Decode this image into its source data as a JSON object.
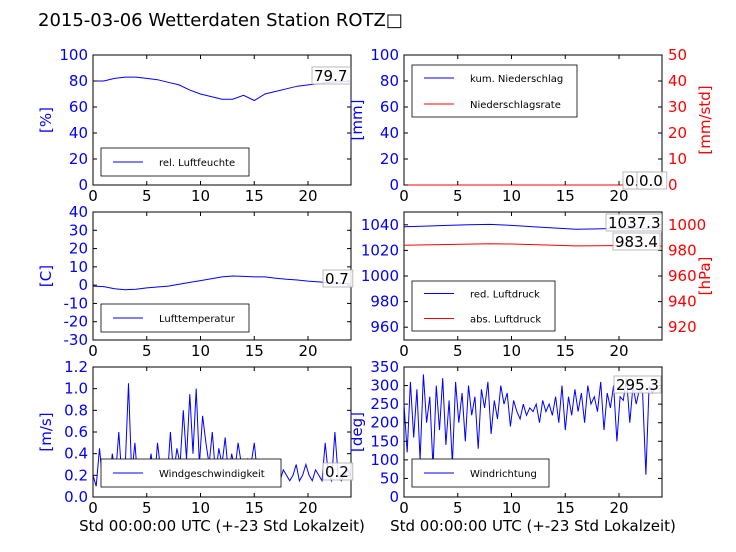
{
  "title": "2015-03-06 Wetterdaten Station ROTZ□",
  "colors": {
    "blue": "#0000ff",
    "red": "#ff0000",
    "black": "#000000"
  },
  "chart_data": [
    {
      "id": "humidity",
      "type": "line",
      "xlim": [
        0,
        24
      ],
      "ylim": [
        0,
        100
      ],
      "xticks": [
        0,
        5,
        10,
        15,
        20
      ],
      "yticks": [
        0,
        20,
        40,
        60,
        80,
        100
      ],
      "ylabel": "[%]",
      "ylabel_color": "#0000ff",
      "legend": [
        "rel. Luftfeuchte"
      ],
      "legend_position": "lower-left",
      "annotation": "79.7",
      "series": [
        {
          "name": "rel. Luftfeuchte",
          "color": "#0000ff",
          "x": [
            0,
            1,
            2,
            3,
            4,
            5,
            6,
            7,
            8,
            9,
            10,
            11,
            12,
            13,
            14,
            15,
            16,
            17,
            18,
            19,
            20,
            21,
            22,
            23,
            24
          ],
          "y": [
            80,
            80,
            82,
            83,
            83,
            82,
            81,
            79,
            77,
            73,
            70,
            68,
            66,
            66,
            69,
            65,
            70,
            72,
            74,
            76,
            77,
            78,
            79,
            79.5,
            79.7
          ]
        }
      ]
    },
    {
      "id": "precip",
      "type": "line",
      "xlim": [
        0,
        24
      ],
      "ylim": [
        0,
        100
      ],
      "ylim_right": [
        0,
        50
      ],
      "xticks": [
        0,
        5,
        10,
        15,
        20
      ],
      "yticks": [
        0,
        20,
        40,
        60,
        80,
        100
      ],
      "yticks_right": [
        0,
        10,
        20,
        30,
        40,
        50
      ],
      "ylabel": "[mm]",
      "ylabel_color": "#0000ff",
      "ylabel_right": "[mm/std]",
      "ylabel_right_color": "#ff0000",
      "legend": [
        "kum. Niederschlag",
        "Niederschlagsrate"
      ],
      "legend_position": "upper-left",
      "annotations": [
        "0.0",
        "0.0"
      ],
      "series": [
        {
          "name": "kum. Niederschlag",
          "color": "#0000ff",
          "x": [
            0,
            24
          ],
          "y": [
            0,
            0
          ]
        },
        {
          "name": "Niederschlagsrate",
          "color": "#ff0000",
          "x": [
            0,
            24
          ],
          "y": [
            0,
            0
          ]
        }
      ]
    },
    {
      "id": "temperature",
      "type": "line",
      "xlim": [
        0,
        24
      ],
      "ylim": [
        -30,
        40
      ],
      "xticks": [
        0,
        5,
        10,
        15,
        20
      ],
      "yticks": [
        -30,
        -20,
        -10,
        0,
        10,
        20,
        30,
        40
      ],
      "ylabel": "[C]",
      "ylabel_color": "#0000ff",
      "legend": [
        "Lufttemperatur"
      ],
      "legend_position": "lower-left",
      "annotation": "0.7",
      "series": [
        {
          "name": "Lufttemperatur",
          "color": "#0000ff",
          "x": [
            0,
            1,
            2,
            3,
            4,
            5,
            6,
            7,
            8,
            9,
            10,
            11,
            12,
            13,
            14,
            15,
            16,
            17,
            18,
            19,
            20,
            21,
            22,
            23,
            24
          ],
          "y": [
            -0.5,
            -0.8,
            -2,
            -2.5,
            -2.3,
            -1.5,
            -1,
            -0.5,
            0.5,
            1.5,
            2.5,
            3.5,
            4.5,
            5,
            4.8,
            4.5,
            4.5,
            3.8,
            3.2,
            2.8,
            2.2,
            1.8,
            1.3,
            1,
            0.7
          ]
        }
      ]
    },
    {
      "id": "pressure",
      "type": "line",
      "xlim": [
        0,
        24
      ],
      "ylim": [
        950,
        1050
      ],
      "ylim_right": [
        910,
        1010
      ],
      "xticks": [
        0,
        5,
        10,
        15,
        20
      ],
      "yticks": [
        960,
        980,
        1000,
        1020,
        1040
      ],
      "yticks_right": [
        920,
        940,
        960,
        980,
        1000
      ],
      "ylabel_right": "[hPa]",
      "ylabel_right_color": "#ff0000",
      "legend": [
        "red. Luftdruck",
        "abs. Luftdruck"
      ],
      "legend_position": "lower-left",
      "annotations": [
        "1037.3",
        "983.4"
      ],
      "series": [
        {
          "name": "red. Luftdruck",
          "color": "#0000ff",
          "axis": "left",
          "x": [
            0,
            2,
            4,
            6,
            8,
            10,
            12,
            14,
            16,
            18,
            20,
            22,
            24
          ],
          "y": [
            1038.5,
            1039,
            1039.5,
            1040,
            1040.3,
            1039.5,
            1038.5,
            1037.5,
            1036.5,
            1036.8,
            1037.2,
            1037.3,
            1037.3
          ]
        },
        {
          "name": "abs. Luftdruck",
          "color": "#ff0000",
          "axis": "right",
          "x": [
            0,
            2,
            4,
            6,
            8,
            10,
            12,
            14,
            16,
            18,
            20,
            22,
            24
          ],
          "y": [
            984,
            984.3,
            984.6,
            984.9,
            985.2,
            985,
            984.5,
            984,
            983.5,
            983.6,
            983.8,
            983.5,
            983.4
          ]
        }
      ]
    },
    {
      "id": "windspeed",
      "type": "line",
      "xlim": [
        0,
        24
      ],
      "ylim": [
        0,
        1.2
      ],
      "xticks": [
        0,
        5,
        10,
        15,
        20
      ],
      "yticks": [
        0.0,
        0.2,
        0.4,
        0.6,
        0.8,
        1.0,
        1.2
      ],
      "ylabel": "[m/s]",
      "ylabel_color": "#0000ff",
      "xlabel": "Std 00:00:00 UTC (+-23 Std Lokalzeit)",
      "legend": [
        "Windgeschwindigkeit"
      ],
      "legend_position": "lower-left",
      "annotation": "0.2",
      "series": [
        {
          "name": "Windgeschwindigkeit",
          "color": "#0000ff",
          "x": [
            0,
            0.3,
            0.6,
            0.9,
            1.2,
            1.5,
            1.8,
            2.1,
            2.4,
            2.7,
            3.0,
            3.3,
            3.6,
            3.9,
            4.2,
            4.5,
            4.8,
            5.1,
            5.4,
            5.7,
            6.0,
            6.3,
            6.6,
            6.9,
            7.2,
            7.5,
            7.8,
            8.1,
            8.4,
            8.7,
            9.0,
            9.3,
            9.6,
            9.9,
            10.2,
            10.5,
            10.8,
            11.1,
            11.4,
            11.7,
            12.0,
            12.3,
            12.6,
            12.9,
            13.2,
            13.5,
            13.8,
            14.1,
            14.4,
            14.7,
            15.0,
            15.3,
            15.6,
            15.9,
            16.2,
            16.5,
            16.8,
            17.1,
            17.4,
            17.7,
            18.0,
            18.3,
            18.6,
            18.9,
            19.2,
            19.5,
            19.8,
            20.1,
            20.4,
            20.7,
            21.0,
            21.3,
            21.6,
            21.9,
            22.2,
            22.5,
            22.8,
            23.1,
            23.4,
            23.7,
            24.0
          ],
          "y": [
            0.2,
            0.1,
            0.45,
            0.15,
            0.3,
            0.1,
            0.4,
            0.2,
            0.6,
            0.15,
            0.3,
            1.05,
            0.2,
            0.5,
            0.1,
            0.35,
            0.15,
            0.2,
            0.4,
            0.1,
            0.5,
            0.25,
            0.3,
            0.15,
            0.6,
            0.2,
            0.45,
            0.3,
            0.8,
            0.35,
            0.95,
            0.4,
            1.0,
            0.3,
            0.75,
            0.5,
            0.3,
            0.6,
            0.2,
            0.45,
            0.3,
            0.55,
            0.2,
            0.4,
            0.25,
            0.5,
            0.3,
            0.2,
            0.35,
            0.3,
            0.5,
            0.2,
            0.3,
            0.15,
            0.25,
            0.2,
            0.3,
            0.2,
            0.15,
            0.25,
            0.2,
            0.15,
            0.2,
            0.3,
            0.15,
            0.2,
            0.3,
            0.2,
            0.15,
            0.25,
            0.2,
            0.15,
            0.5,
            0.2,
            0.15,
            0.6,
            0.2,
            0.15,
            0.2,
            0.25,
            0.2
          ]
        }
      ]
    },
    {
      "id": "winddir",
      "type": "line",
      "xlim": [
        0,
        24
      ],
      "ylim": [
        0,
        350
      ],
      "xticks": [
        0,
        5,
        10,
        15,
        20
      ],
      "yticks": [
        0,
        50,
        100,
        150,
        200,
        250,
        300,
        350
      ],
      "ylabel": "[deg]",
      "ylabel_color": "#0000ff",
      "xlabel": "Std 00:00:00 UTC (+-23 Std Lokalzeit)",
      "legend": [
        "Windrichtung"
      ],
      "legend_position": "lower-left",
      "annotation": "295.3",
      "series": [
        {
          "name": "Windrichtung",
          "color": "#0000ff",
          "x": [
            0,
            0.3,
            0.6,
            0.9,
            1.2,
            1.5,
            1.8,
            2.1,
            2.4,
            2.7,
            3.0,
            3.3,
            3.6,
            3.9,
            4.2,
            4.5,
            4.8,
            5.1,
            5.4,
            5.7,
            6.0,
            6.3,
            6.6,
            6.9,
            7.2,
            7.5,
            7.8,
            8.1,
            8.4,
            8.7,
            9.0,
            9.3,
            9.6,
            9.9,
            10.2,
            10.5,
            10.8,
            11.1,
            11.4,
            11.7,
            12.0,
            12.3,
            12.6,
            12.9,
            13.2,
            13.5,
            13.8,
            14.1,
            14.4,
            14.7,
            15.0,
            15.3,
            15.6,
            15.9,
            16.2,
            16.5,
            16.8,
            17.1,
            17.4,
            17.7,
            18.0,
            18.3,
            18.6,
            18.9,
            19.2,
            19.5,
            19.8,
            20.1,
            20.4,
            20.7,
            21.0,
            21.3,
            21.6,
            21.9,
            22.2,
            22.5,
            22.8,
            23.1,
            23.4,
            23.7,
            24.0
          ],
          "y": [
            250,
            120,
            310,
            160,
            290,
            100,
            330,
            200,
            270,
            80,
            300,
            180,
            320,
            140,
            260,
            90,
            310,
            200,
            280,
            150,
            300,
            220,
            270,
            130,
            290,
            240,
            310,
            170,
            260,
            210,
            300,
            250,
            280,
            190,
            260,
            230,
            210,
            250,
            220,
            240,
            230,
            250,
            200,
            260,
            230,
            250,
            220,
            270,
            200,
            300,
            180,
            270,
            220,
            290,
            230,
            280,
            200,
            300,
            250,
            270,
            230,
            310,
            180,
            280,
            240,
            300,
            150,
            270,
            260,
            320,
            200,
            300,
            250,
            290,
            280,
            60,
            300,
            280,
            295,
            290,
            295.3
          ]
        }
      ]
    }
  ]
}
